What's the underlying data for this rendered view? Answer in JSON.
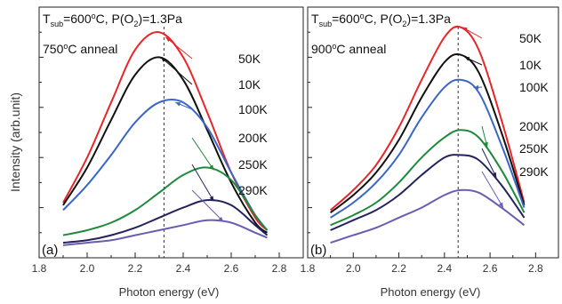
{
  "ylabel": "Intensity (arb.unit)",
  "chart_data": [
    {
      "type": "line",
      "panel_label": "(a)",
      "condition_text": "T_sub=600°C, P(O2)=1.3Pa",
      "anneal_text": "750°C anneal",
      "xlabel": "Photon energy (eV)",
      "xlim": [
        1.8,
        2.9
      ],
      "ylim": [
        0,
        1.0
      ],
      "xticks": [
        "1.8",
        "2.0",
        "2.2",
        "2.4",
        "2.6",
        "2.8"
      ],
      "dashed_line_x": 2.32,
      "series": [
        {
          "name": "50K",
          "color": "#e8262a",
          "x": [
            1.9,
            2.0,
            2.1,
            2.2,
            2.3,
            2.4,
            2.5,
            2.6,
            2.7,
            2.75
          ],
          "y": [
            0.22,
            0.4,
            0.62,
            0.83,
            0.9,
            0.8,
            0.58,
            0.34,
            0.16,
            0.11
          ]
        },
        {
          "name": "10K",
          "color": "#111111",
          "x": [
            1.9,
            2.0,
            2.1,
            2.2,
            2.3,
            2.4,
            2.5,
            2.6,
            2.7,
            2.75
          ],
          "y": [
            0.21,
            0.36,
            0.55,
            0.73,
            0.8,
            0.71,
            0.51,
            0.3,
            0.14,
            0.1
          ]
        },
        {
          "name": "100K",
          "color": "#3a66c4",
          "x": [
            1.9,
            2.0,
            2.1,
            2.2,
            2.3,
            2.4,
            2.5,
            2.6,
            2.7,
            2.75
          ],
          "y": [
            0.19,
            0.29,
            0.41,
            0.54,
            0.62,
            0.62,
            0.52,
            0.34,
            0.17,
            0.11
          ]
        },
        {
          "name": "200K",
          "color": "#1e8a3a",
          "x": [
            1.9,
            2.0,
            2.1,
            2.2,
            2.3,
            2.4,
            2.5,
            2.6,
            2.7,
            2.75
          ],
          "y": [
            0.09,
            0.11,
            0.14,
            0.19,
            0.26,
            0.33,
            0.36,
            0.31,
            0.17,
            0.11
          ]
        },
        {
          "name": "250K",
          "color": "#23235e",
          "x": [
            1.9,
            2.0,
            2.1,
            2.2,
            2.3,
            2.4,
            2.5,
            2.6,
            2.7,
            2.75
          ],
          "y": [
            0.06,
            0.07,
            0.09,
            0.12,
            0.16,
            0.2,
            0.23,
            0.21,
            0.13,
            0.09
          ]
        },
        {
          "name": "290K",
          "color": "#6a5cb0",
          "x": [
            1.9,
            2.0,
            2.1,
            2.2,
            2.3,
            2.4,
            2.5,
            2.6,
            2.7,
            2.75
          ],
          "y": [
            0.05,
            0.06,
            0.07,
            0.09,
            0.11,
            0.13,
            0.15,
            0.14,
            0.1,
            0.08
          ]
        }
      ]
    },
    {
      "type": "line",
      "panel_label": "(b)",
      "condition_text": "T_sub=600°C, P(O2)=1.3Pa",
      "anneal_text": "900°C anneal",
      "xlabel": "Photon energy (eV)",
      "xlim": [
        1.8,
        2.9
      ],
      "ylim": [
        0,
        1.0
      ],
      "xticks": [
        "1.8",
        "2.0",
        "2.2",
        "2.4",
        "2.6",
        "2.8"
      ],
      "dashed_line_x": 2.46,
      "series": [
        {
          "name": "50K",
          "color": "#e8262a",
          "x": [
            1.9,
            2.0,
            2.1,
            2.2,
            2.3,
            2.4,
            2.47,
            2.55,
            2.65,
            2.75
          ],
          "y": [
            0.19,
            0.27,
            0.37,
            0.52,
            0.71,
            0.88,
            0.92,
            0.83,
            0.55,
            0.22
          ]
        },
        {
          "name": "10K",
          "color": "#111111",
          "x": [
            1.9,
            2.0,
            2.1,
            2.2,
            2.3,
            2.4,
            2.47,
            2.55,
            2.65,
            2.75
          ],
          "y": [
            0.18,
            0.25,
            0.34,
            0.47,
            0.64,
            0.78,
            0.81,
            0.74,
            0.5,
            0.21
          ]
        },
        {
          "name": "100K",
          "color": "#3a66c4",
          "x": [
            1.9,
            2.0,
            2.1,
            2.2,
            2.3,
            2.4,
            2.47,
            2.55,
            2.65,
            2.75
          ],
          "y": [
            0.16,
            0.22,
            0.3,
            0.41,
            0.56,
            0.68,
            0.71,
            0.66,
            0.45,
            0.2
          ]
        },
        {
          "name": "200K",
          "color": "#1e8a3a",
          "x": [
            1.9,
            2.0,
            2.1,
            2.2,
            2.3,
            2.4,
            2.47,
            2.55,
            2.65,
            2.75
          ],
          "y": [
            0.13,
            0.17,
            0.22,
            0.3,
            0.4,
            0.48,
            0.51,
            0.48,
            0.35,
            0.18
          ]
        },
        {
          "name": "250K",
          "color": "#23235e",
          "x": [
            1.9,
            2.0,
            2.1,
            2.2,
            2.3,
            2.4,
            2.47,
            2.55,
            2.65,
            2.75
          ],
          "y": [
            0.11,
            0.15,
            0.19,
            0.25,
            0.33,
            0.4,
            0.41,
            0.39,
            0.29,
            0.16
          ]
        },
        {
          "name": "290K",
          "color": "#6a5cb0",
          "x": [
            1.9,
            2.0,
            2.1,
            2.2,
            2.3,
            2.4,
            2.47,
            2.55,
            2.65,
            2.75
          ],
          "y": [
            0.06,
            0.09,
            0.12,
            0.16,
            0.2,
            0.25,
            0.27,
            0.26,
            0.2,
            0.13
          ]
        }
      ]
    }
  ]
}
